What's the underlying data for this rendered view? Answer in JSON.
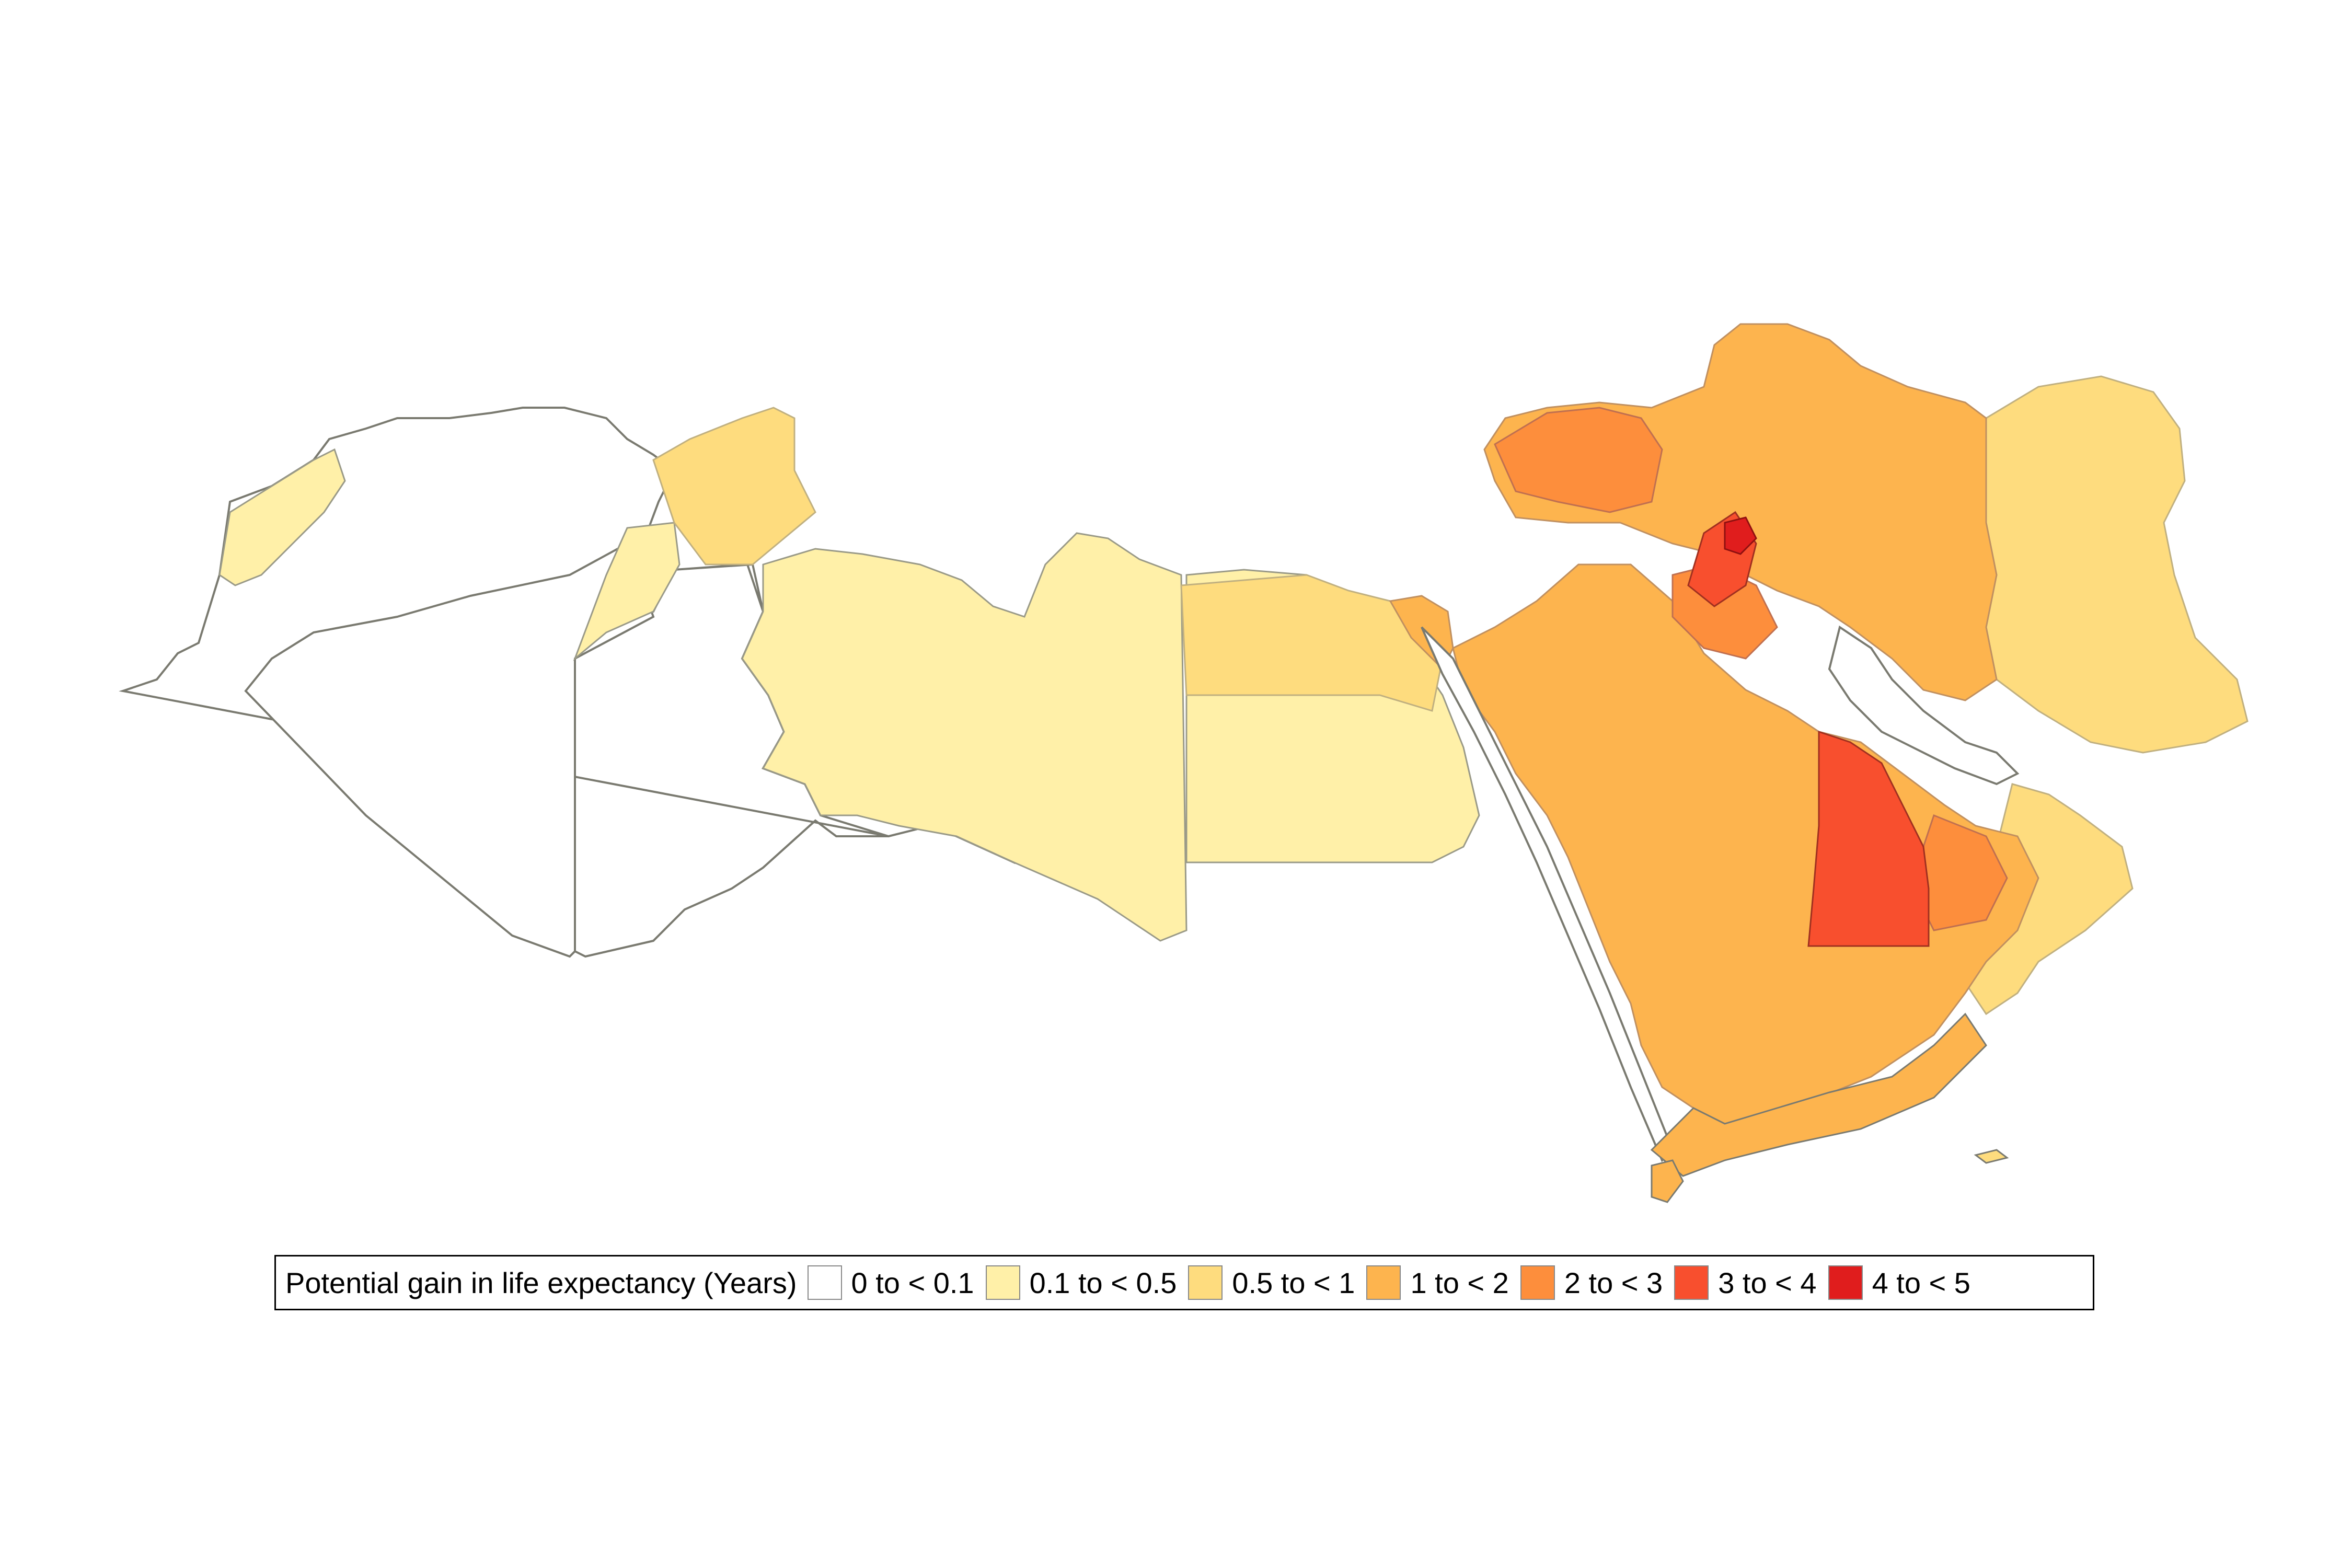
{
  "legend": {
    "title": "Potential gain in life expectancy (Years)",
    "items": [
      {
        "label": "0 to < 0.1",
        "color": "#ffffff"
      },
      {
        "label": "0.1 to < 0.5",
        "color": "#fff0a8"
      },
      {
        "label": "0.5 to < 1",
        "color": "#fedc7e"
      },
      {
        "label": "1 to < 2",
        "color": "#fdb44e"
      },
      {
        "label": "2 to < 3",
        "color": "#fd8e3c"
      },
      {
        "label": "3 to < 4",
        "color": "#f84f2e"
      },
      {
        "label": "4 to < 5",
        "color": "#e01d1d"
      }
    ]
  },
  "map": {
    "border_color": "#7a7a70",
    "internal_border_color": "#b8b8b8"
  }
}
